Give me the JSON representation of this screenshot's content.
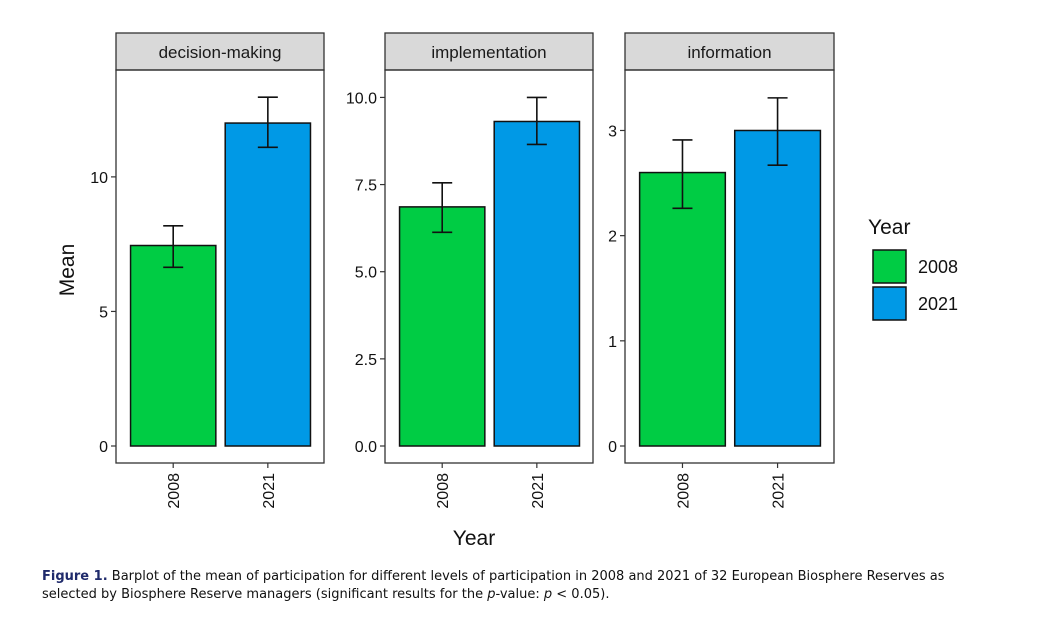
{
  "chart_data": {
    "type": "bar",
    "facet": "Level of participation",
    "xlabel": "Year",
    "ylabel": "Mean",
    "legend": {
      "title": "Year",
      "placement": "right",
      "entries": [
        {
          "label": "2008",
          "color": "#00CC44"
        },
        {
          "label": "2021",
          "color": "#0099E6"
        }
      ]
    },
    "categories": [
      "2008",
      "2021"
    ],
    "panels": [
      {
        "title": "decision-making",
        "ylim": [
          0,
          13.6
        ],
        "yticks": [
          0,
          5,
          10
        ],
        "ytick_labels": [
          "0",
          "5",
          "10"
        ],
        "values": [
          7.45,
          12.0
        ],
        "error_low": [
          6.64,
          11.1
        ],
        "error_high": [
          8.18,
          12.96
        ]
      },
      {
        "title": "implementation",
        "ylim": [
          0,
          10.5
        ],
        "yticks": [
          0,
          2.5,
          5,
          7.5,
          10
        ],
        "ytick_labels": [
          "0.0",
          "2.5",
          "5.0",
          "7.5",
          "10.0"
        ],
        "values": [
          6.86,
          9.31
        ],
        "error_low": [
          6.13,
          8.65
        ],
        "error_high": [
          7.55,
          10.0
        ]
      },
      {
        "title": "information",
        "ylim": [
          0,
          3.48
        ],
        "yticks": [
          0,
          1,
          2,
          3
        ],
        "ytick_labels": [
          "0",
          "1",
          "2",
          "3"
        ],
        "values": [
          2.6,
          3.0
        ],
        "error_low": [
          2.26,
          2.67
        ],
        "error_high": [
          2.91,
          3.31
        ]
      }
    ]
  },
  "caption": {
    "label": "Figure 1.",
    "text": " Barplot of the mean of participation for different levels of participation in 2008 and 2021 of 32 European Biosphere Reserves as selected by Biosphere Reserve managers (significant results for the ",
    "p_italic": "p",
    "text2": "-value: ",
    "p_italic2": "p",
    "text3": " < 0.05)."
  }
}
